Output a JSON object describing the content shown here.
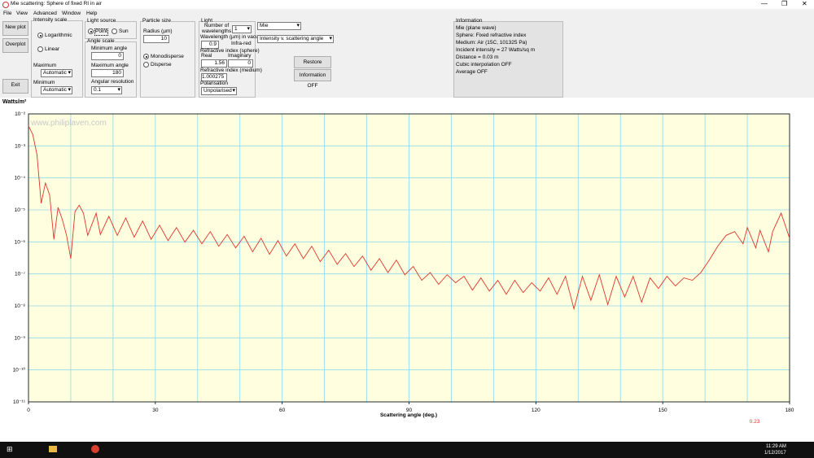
{
  "window": {
    "title": "Mie scattering:  Sphere of fixed RI in air"
  },
  "menu": [
    "File",
    "View",
    "Advanced",
    "Window",
    "Help"
  ],
  "buttons": {
    "new_plot": "New plot",
    "overplot": "Overplot",
    "exit": "Exit",
    "restore": "Restore defaults",
    "information": "Information OFF"
  },
  "intensity_scale": {
    "title": "Intensity scale",
    "options": [
      "Logarithmic",
      "Linear"
    ],
    "maximum_label": "Maximum",
    "maximum": "Automatic",
    "minimum_label": "Minimum",
    "minimum": "Automatic"
  },
  "light_source": {
    "title": "Light source",
    "options": [
      "Point",
      "Sun"
    ]
  },
  "angle_scale": {
    "title": "Angle scale",
    "min_label": "Minimum angle",
    "min": 0,
    "max_label": "Maximum angle",
    "max": 180,
    "res_label": "Angular resolution",
    "res": 0.1
  },
  "particle_size": {
    "title": "Particle size",
    "radius_label": "Radius (µm)",
    "radius": 10,
    "options": [
      "Monodisperse",
      "Disperse"
    ]
  },
  "light": {
    "title": "Light",
    "n_wl_label": "Number of wavelengths",
    "n_wl": 1,
    "wl_label": "Wavelength (µm) in vacuo",
    "wl": 0.9,
    "wl_band": "Infra-red",
    "ri_sphere_label": "Refractive index (sphere)",
    "real_label": "Real",
    "real": 1.56,
    "imag_label": "Imaginary",
    "imag": 0,
    "ri_medium_label": "Refractive index (medium)",
    "ri_medium": 1.000275,
    "pol_label": "Polarisation",
    "pol": "Unpolarised"
  },
  "mode": {
    "theory": "Mie",
    "plot": "Intensity v. scattering angle"
  },
  "information": {
    "title": "Information",
    "lines": [
      "Mie (plane wave)",
      "Sphere: Fixed refractive index",
      "Medium: Air (15C, 101325 Pa)",
      "Incident intensity = 27 Watts/sq m",
      "Distance = 0.03 m",
      "Cubic interpolation OFF",
      "Average OFF"
    ]
  },
  "chart_data": {
    "type": "line",
    "ylabel": "Watts/m²",
    "xlabel": "Scattering angle (deg.)",
    "watermark": "www.philiplaven.com",
    "color": "#e0342a",
    "log_y": true,
    "grid": true,
    "xlim": [
      0,
      180
    ],
    "xticks": [
      0,
      30,
      60,
      90,
      120,
      150,
      180
    ],
    "xminor": [
      10,
      20,
      40,
      50,
      70,
      80,
      100,
      110,
      130,
      140,
      160,
      170
    ],
    "ylim": [
      1e-11,
      0.01
    ],
    "yticks": [
      {
        "value": 0.01,
        "label": "10⁻²"
      },
      {
        "value": 0.001,
        "label": "10⁻³"
      },
      {
        "value": 0.0001,
        "label": "10⁻⁴"
      },
      {
        "value": 1e-05,
        "label": "10⁻⁵"
      },
      {
        "value": 1e-06,
        "label": "10⁻⁶"
      },
      {
        "value": 1e-07,
        "label": "10⁻⁷"
      },
      {
        "value": 1e-08,
        "label": "10⁻⁸"
      },
      {
        "value": 1e-09,
        "label": "10⁻⁹"
      },
      {
        "value": 1e-10,
        "label": "10⁻¹⁰"
      },
      {
        "value": 1e-11,
        "label": "10⁻¹¹"
      }
    ],
    "x": [
      0,
      1,
      2,
      3,
      4,
      5,
      6,
      7,
      8,
      9,
      10,
      11,
      12,
      13,
      14,
      16,
      17,
      19,
      21,
      23,
      25,
      27,
      29,
      31,
      33,
      35,
      37,
      39,
      41,
      43,
      45,
      47,
      49,
      51,
      53,
      55,
      57,
      59,
      61,
      63,
      65,
      67,
      69,
      71,
      73,
      75,
      77,
      79,
      81,
      83,
      85,
      87,
      89,
      91,
      93,
      95,
      97,
      99,
      101,
      103,
      105,
      107,
      109,
      111,
      113,
      115,
      117,
      119,
      121,
      123,
      125,
      127,
      129,
      131,
      133,
      135,
      137,
      139,
      141,
      143,
      145,
      147,
      149,
      151,
      153,
      155,
      157,
      159,
      161,
      163,
      165,
      167,
      169,
      170,
      172,
      173,
      175,
      176,
      178,
      180
    ],
    "values": [
      0.0042,
      0.0023,
      0.00054,
      1.6e-05,
      6.9e-05,
      2.9e-05,
      1.2e-06,
      1.2e-05,
      5e-06,
      1.6e-06,
      3e-07,
      8.9e-06,
      1.4e-05,
      7.9e-06,
      1.6e-06,
      7.9e-06,
      1.7e-06,
      6.3e-06,
      1.6e-06,
      5.6e-06,
      1.4e-06,
      4.5e-06,
      1.2e-06,
      3.3e-06,
      1.1e-06,
      2.8e-06,
      9.8e-07,
      2.3e-06,
      8.7e-07,
      2.1e-06,
      7.3e-07,
      1.7e-06,
      6.5e-07,
      1.5e-06,
      4.9e-07,
      1.3e-06,
      4.1e-07,
      1.1e-06,
      3.6e-07,
      8.7e-07,
      3e-07,
      7.3e-07,
      2.4e-07,
      5.5e-07,
      2e-07,
      4.3e-07,
      1.7e-07,
      3.6e-07,
      1.3e-07,
      3e-07,
      1.1e-07,
      2.7e-07,
      9.4e-08,
      1.7e-07,
      6.3e-08,
      1.1e-07,
      4.7e-08,
      9.4e-08,
      5.3e-08,
      8.4e-08,
      3.1e-08,
      7.5e-08,
      2.9e-08,
      6.3e-08,
      2.3e-08,
      6.3e-08,
      2.6e-08,
      5.3e-08,
      2.9e-08,
      7.5e-08,
      2.3e-08,
      8.4e-08,
      8.1e-09,
      8.4e-08,
      1.5e-08,
      9.4e-08,
      1.1e-08,
      8.4e-08,
      1.9e-08,
      8.4e-08,
      1.3e-08,
      7.5e-08,
      3.5e-08,
      8.4e-08,
      4.2e-08,
      7.5e-08,
      6.3e-08,
      1.1e-07,
      2.7e-07,
      7.3e-07,
      1.6e-06,
      2.1e-06,
      8.7e-07,
      2.8e-06,
      6.5e-07,
      2.3e-06,
      4.9e-07,
      2.1e-06,
      7.9e-06,
      1.3e-06
    ]
  },
  "status_value": 0.23,
  "taskbar": {
    "time": "11:29 AM",
    "date": "1/12/2017"
  }
}
